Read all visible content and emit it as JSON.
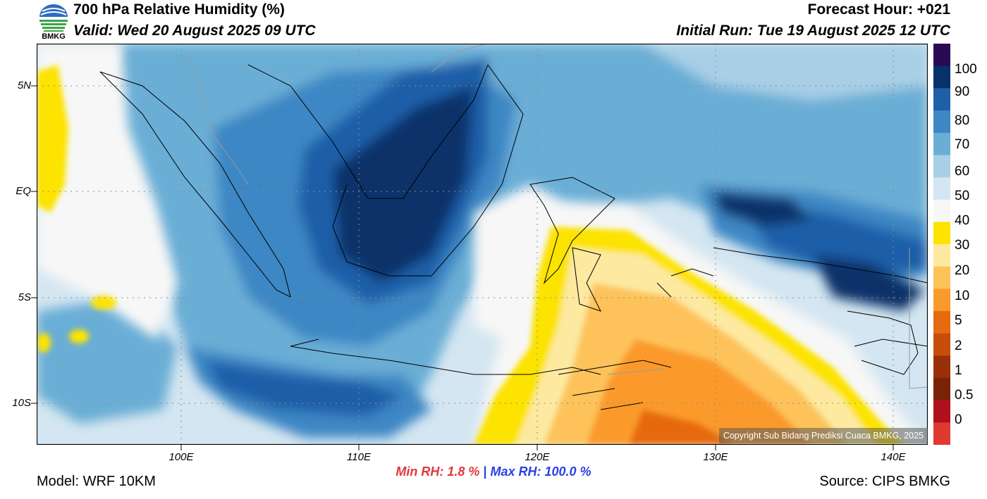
{
  "header": {
    "title": "700 hPa Relative Humidity (%)",
    "valid": "Valid: Wed 20 August 2025 09 UTC",
    "forecast_hour": "Forecast Hour: +021",
    "initial_run": "Initial Run: Tue 19 August 2025 12 UTC"
  },
  "logo": {
    "text": "BMKG",
    "icon": "bmkg-logo-icon"
  },
  "axes": {
    "lat_ticks": [
      "5N",
      "EQ",
      "5S",
      "10S"
    ],
    "lon_ticks": [
      "100E",
      "110E",
      "120E",
      "130E",
      "140E"
    ]
  },
  "colorbar": {
    "labels": [
      "100",
      "90",
      "80",
      "70",
      "60",
      "50",
      "40",
      "30",
      "20",
      "10",
      "5",
      "2",
      "1",
      "0.5",
      "0"
    ],
    "colors": [
      "#2a0a55",
      "#08306b",
      "#1f5fa8",
      "#3d87c4",
      "#6aaed6",
      "#a8cfe6",
      "#d4e6f1",
      "#f7f7f7",
      "#fce300",
      "#fde9a0",
      "#fdc35a",
      "#fb9a2c",
      "#e66a10",
      "#c84d0a",
      "#9a3008",
      "#7a2306",
      "#b00f1d",
      "#e03a30"
    ]
  },
  "stats": {
    "min_label": "Min RH:   1.8 %",
    "separator": "|",
    "max_label": "Max RH: 100.0 %"
  },
  "footer": {
    "model": "Model: WRF 10KM",
    "source": "Source: CIPS BMKG",
    "copyright": "Copyright Sub Bidang Prediksi Cuaca BMKG, 2025"
  }
}
